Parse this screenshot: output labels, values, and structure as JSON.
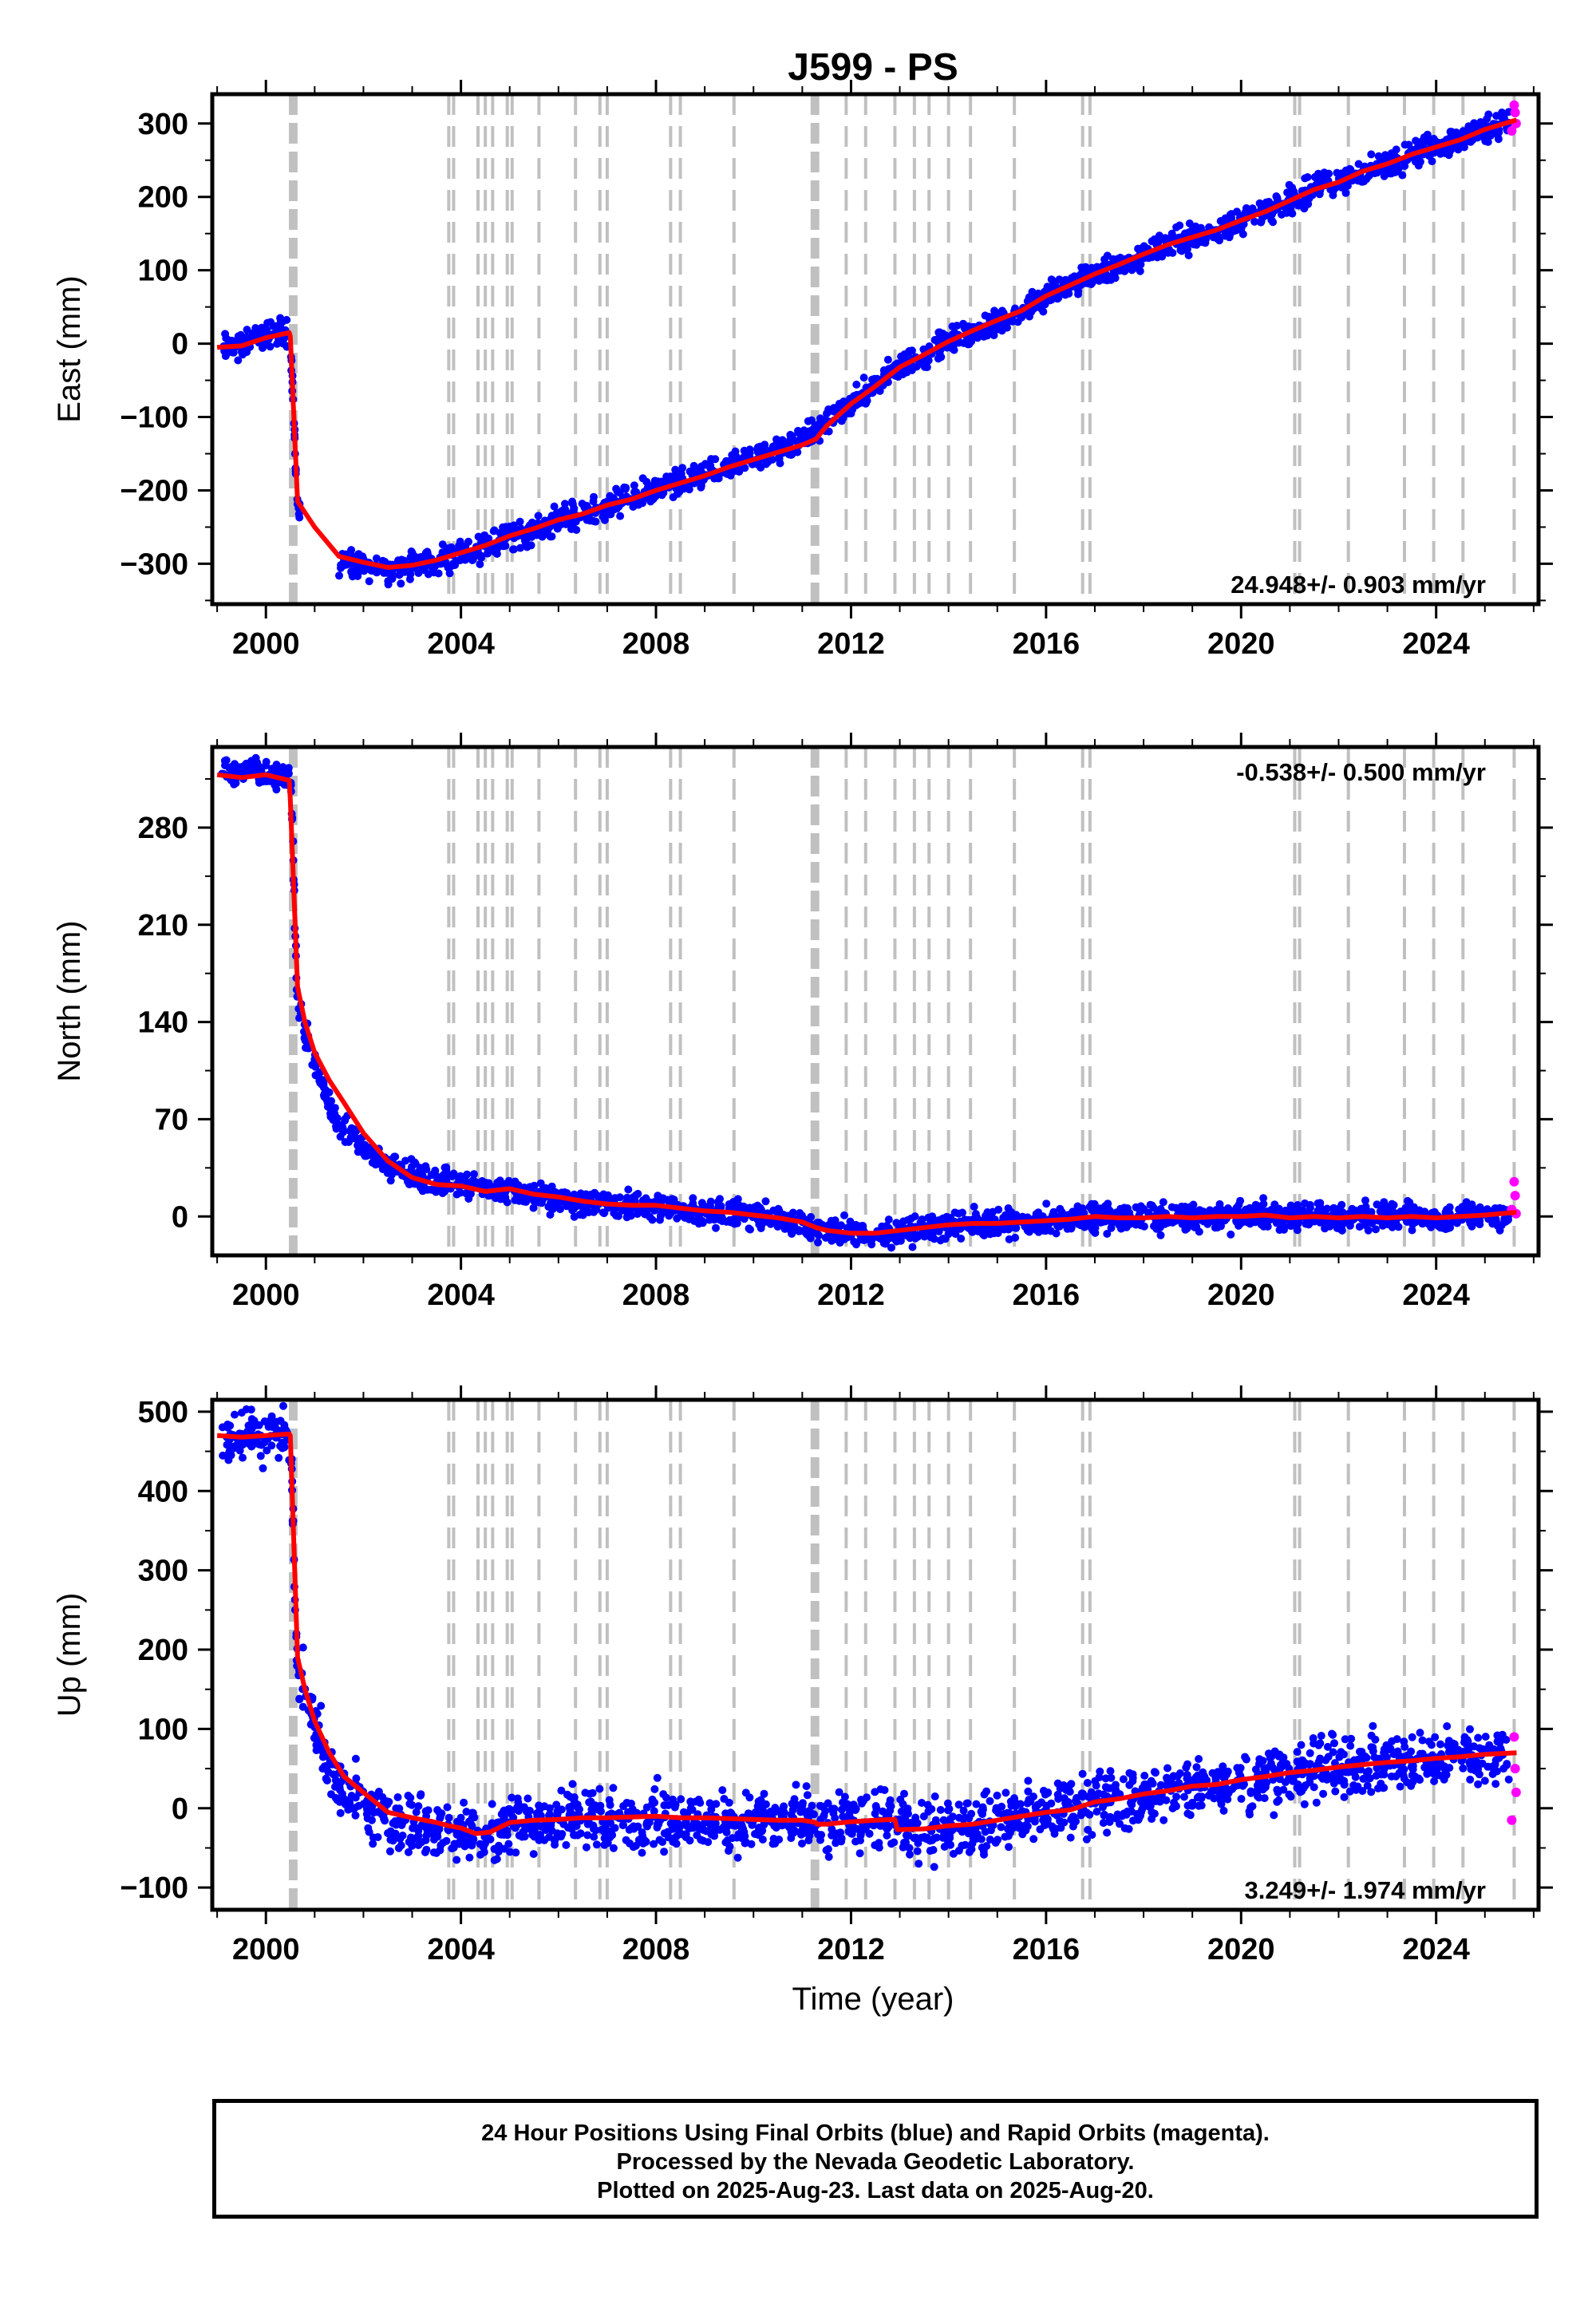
{
  "title": "J599 - PS",
  "xlabel": "Time (year)",
  "colors": {
    "final": "#0000ff",
    "rapid": "#ff00ff",
    "model": "#ff0000",
    "steps": "#c0c0c0"
  },
  "footer": [
    "24 Hour Positions Using Final Orbits (blue) and Rapid Orbits (magenta).",
    "Processed by the Nevada Geodetic Laboratory.",
    "Plotted on 2025-Aug-23. Last data on 2025-Aug-20."
  ],
  "chart_data": [
    {
      "type": "scatter",
      "component": "East",
      "ylabel": "East (mm)",
      "xlim": [
        1998.9,
        2026.1
      ],
      "ylim": [
        -355,
        340
      ],
      "yticks": [
        -300,
        -200,
        -100,
        0,
        100,
        200,
        300
      ],
      "xticks": [
        2000,
        2004,
        2008,
        2012,
        2016,
        2020,
        2024
      ],
      "rate": "24.948+/- 0.903 mm/yr",
      "rate_position": "bottom-right",
      "grid": false,
      "series": [
        {
          "name": "Final Orbits (blue)",
          "type": "scatter",
          "color": "#0000ff",
          "x": [
            1999.1,
            1999.4,
            1999.7,
            2000.0,
            2000.3,
            2000.5,
            2000.55,
            2000.6,
            2000.65,
            2000.7,
            2001.5,
            2002.0,
            2002.5,
            2003.0,
            2003.5,
            2004.0,
            2004.5,
            2005.0,
            2005.5,
            2006.0,
            2006.5,
            2007.0,
            2007.5,
            2008.0,
            2008.5,
            2009.0,
            2009.5,
            2010.0,
            2010.5,
            2011.0,
            2011.5,
            2012.0,
            2012.5,
            2013.0,
            2013.5,
            2014.0,
            2014.5,
            2015.0,
            2015.5,
            2016.0,
            2016.5,
            2017.0,
            2017.5,
            2018.0,
            2018.5,
            2019.0,
            2019.5,
            2020.0,
            2020.5,
            2021.0,
            2021.5,
            2022.0,
            2022.5,
            2023.0,
            2023.5,
            2024.0,
            2024.5,
            2025.0,
            2025.5
          ],
          "y": [
            -5,
            -3,
            0,
            12,
            20,
            10,
            -60,
            -150,
            -220,
            -230,
            -305,
            -300,
            -310,
            -300,
            -298,
            -283,
            -278,
            -262,
            -255,
            -240,
            -233,
            -220,
            -212,
            -200,
            -190,
            -180,
            -168,
            -155,
            -148,
            -130,
            -108,
            -80,
            -60,
            -30,
            -15,
            2,
            18,
            30,
            45,
            65,
            80,
            95,
            105,
            122,
            135,
            145,
            155,
            168,
            180,
            195,
            210,
            220,
            235,
            245,
            258,
            270,
            280,
            292,
            305
          ]
        },
        {
          "name": "Rapid Orbits (magenta)",
          "type": "scatter",
          "color": "#ff00ff",
          "x": [
            2025.55,
            2025.6,
            2025.62,
            2025.64
          ],
          "y": [
            290,
            325,
            315,
            300
          ]
        },
        {
          "name": "Model",
          "type": "line",
          "color": "#ff0000",
          "x": [
            1999.0,
            1999.5,
            2000.0,
            2000.48,
            2000.5,
            2000.65,
            2001.0,
            2001.5,
            2002.0,
            2002.5,
            2003.0,
            2003.5,
            2004.0,
            2004.5,
            2005.0,
            2005.5,
            2006.0,
            2006.5,
            2007.0,
            2007.5,
            2008.0,
            2008.5,
            2009.0,
            2009.5,
            2010.0,
            2010.5,
            2011.0,
            2011.28,
            2011.5,
            2012.0,
            2012.5,
            2013.0,
            2013.5,
            2014.0,
            2014.5,
            2015.0,
            2015.5,
            2016.0,
            2016.5,
            2017.0,
            2017.5,
            2018.0,
            2018.5,
            2019.0,
            2019.5,
            2020.0,
            2020.5,
            2021.0,
            2021.5,
            2022.0,
            2022.5,
            2023.0,
            2023.5,
            2024.0,
            2024.5,
            2025.0,
            2025.65
          ],
          "y": [
            -5,
            -3,
            8,
            15,
            10,
            -215,
            -250,
            -290,
            -298,
            -305,
            -302,
            -295,
            -285,
            -275,
            -262,
            -252,
            -240,
            -232,
            -220,
            -212,
            -200,
            -190,
            -180,
            -168,
            -158,
            -148,
            -138,
            -130,
            -112,
            -82,
            -58,
            -32,
            -15,
            3,
            18,
            32,
            45,
            65,
            80,
            95,
            108,
            122,
            135,
            145,
            155,
            168,
            180,
            195,
            210,
            220,
            235,
            245,
            258,
            268,
            278,
            292,
            305
          ]
        }
      ]
    },
    {
      "type": "scatter",
      "component": "North",
      "ylabel": "North (mm)",
      "xlim": [
        1998.9,
        2026.1
      ],
      "ylim": [
        -28,
        338
      ],
      "yticks": [
        0,
        70,
        140,
        210,
        280
      ],
      "xticks": [
        2000,
        2004,
        2008,
        2012,
        2016,
        2020,
        2024
      ],
      "rate": "-0.538+/- 0.500 mm/yr",
      "rate_position": "top-right",
      "grid": false,
      "series": [
        {
          "name": "Final Orbits (blue)",
          "type": "scatter",
          "color": "#0000ff",
          "x": [
            1999.1,
            1999.4,
            1999.7,
            2000.0,
            2000.3,
            2000.5,
            2000.55,
            2000.6,
            2000.65,
            2001.4,
            2001.7,
            2002.0,
            2002.5,
            2003.0,
            2003.5,
            2004.0,
            2004.5,
            2005.0,
            2005.5,
            2006.0,
            2006.5,
            2007.0,
            2007.5,
            2008.0,
            2008.5,
            2009.0,
            2009.5,
            2010.0,
            2010.5,
            2011.0,
            2011.5,
            2012.0,
            2012.5,
            2013.0,
            2013.5,
            2014.0,
            2014.5,
            2015.0,
            2015.5,
            2016.0,
            2016.5,
            2017.0,
            2017.5,
            2018.0,
            2018.5,
            2019.0,
            2019.5,
            2020.0,
            2020.5,
            2021.0,
            2021.5,
            2022.0,
            2022.5,
            2023.0,
            2023.5,
            2024.0,
            2024.5,
            2025.0,
            2025.5
          ],
          "y": [
            320,
            318,
            322,
            316,
            318,
            315,
            280,
            200,
            150,
            70,
            60,
            48,
            38,
            30,
            26,
            24,
            20,
            18,
            16,
            12,
            10,
            8,
            8,
            6,
            5,
            4,
            2,
            0,
            -2,
            -6,
            -10,
            -12,
            -14,
            -12,
            -8,
            -6,
            -5,
            -6,
            -4,
            -3,
            -2,
            0,
            -2,
            -1,
            0,
            -1,
            0,
            0,
            1,
            -1,
            0,
            -1,
            0,
            -1,
            0,
            -1,
            0,
            1,
            2
          ]
        },
        {
          "name": "Rapid Orbits (magenta)",
          "type": "scatter",
          "color": "#ff00ff",
          "x": [
            2025.55,
            2025.6,
            2025.62,
            2025.64
          ],
          "y": [
            5,
            25,
            15,
            2
          ]
        },
        {
          "name": "Model",
          "type": "line",
          "color": "#ff0000",
          "x": [
            1999.0,
            1999.5,
            2000.0,
            2000.48,
            2000.5,
            2000.65,
            2000.8,
            2001.0,
            2001.3,
            2001.6,
            2002.0,
            2002.5,
            2003.0,
            2003.5,
            2004.0,
            2004.5,
            2005.0,
            2005.5,
            2006.0,
            2006.5,
            2007.0,
            2007.5,
            2008.0,
            2008.5,
            2009.0,
            2009.5,
            2010.0,
            2010.5,
            2011.0,
            2011.28,
            2011.5,
            2012.0,
            2012.5,
            2013.0,
            2013.5,
            2014.0,
            2014.5,
            2015.0,
            2015.5,
            2016.0,
            2016.5,
            2017.0,
            2017.5,
            2018.0,
            2018.5,
            2019.0,
            2019.5,
            2020.0,
            2020.5,
            2021.0,
            2021.5,
            2022.0,
            2022.5,
            2023.0,
            2023.5,
            2024.0,
            2024.5,
            2025.0,
            2025.65
          ],
          "y": [
            318,
            316,
            318,
            314,
            300,
            165,
            140,
            118,
            98,
            82,
            60,
            40,
            28,
            23,
            22,
            18,
            20,
            16,
            14,
            11,
            9,
            8,
            8,
            6,
            4,
            3,
            1,
            -1,
            -4,
            -8,
            -10,
            -12,
            -12,
            -10,
            -8,
            -6,
            -5,
            -5,
            -4,
            -3,
            -2,
            0,
            -1,
            -1,
            0,
            -1,
            0,
            0,
            1,
            -1,
            0,
            -1,
            0,
            -1,
            0,
            -1,
            0,
            1,
            3
          ]
        }
      ]
    },
    {
      "type": "scatter",
      "component": "Up",
      "ylabel": "Up (mm)",
      "xlim": [
        1998.9,
        2026.1
      ],
      "ylim": [
        -128,
        515
      ],
      "yticks": [
        -100,
        0,
        100,
        200,
        300,
        400,
        500
      ],
      "xticks": [
        2000,
        2004,
        2008,
        2012,
        2016,
        2020,
        2024
      ],
      "rate": "3.249+/- 1.974 mm/yr",
      "rate_position": "bottom-right",
      "grid": false,
      "series": [
        {
          "name": "Final Orbits (blue)",
          "type": "scatter",
          "color": "#0000ff",
          "x": [
            1999.1,
            1999.4,
            1999.7,
            2000.0,
            2000.3,
            2000.5,
            2000.55,
            2000.6,
            2000.65,
            2001.4,
            2001.7,
            2002.0,
            2002.5,
            2003.0,
            2003.5,
            2004.0,
            2004.5,
            2005.0,
            2005.5,
            2006.0,
            2006.5,
            2007.0,
            2007.5,
            2008.0,
            2008.5,
            2009.0,
            2009.5,
            2010.0,
            2010.5,
            2011.0,
            2011.5,
            2012.0,
            2012.5,
            2013.0,
            2013.5,
            2014.0,
            2014.5,
            2015.0,
            2015.5,
            2016.0,
            2016.5,
            2017.0,
            2017.5,
            2018.0,
            2018.5,
            2019.0,
            2019.5,
            2020.0,
            2020.5,
            2021.0,
            2021.5,
            2022.0,
            2022.5,
            2023.0,
            2023.5,
            2024.0,
            2024.5,
            2025.0,
            2025.5
          ],
          "y": [
            470,
            468,
            472,
            466,
            470,
            475,
            380,
            250,
            170,
            40,
            20,
            0,
            -15,
            -20,
            -25,
            -30,
            -30,
            -15,
            -20,
            -12,
            -15,
            -12,
            -15,
            -10,
            -15,
            -15,
            -20,
            -15,
            -20,
            -18,
            -22,
            -18,
            -15,
            -25,
            -28,
            -22,
            -20,
            -15,
            -10,
            -5,
            0,
            5,
            10,
            15,
            20,
            25,
            30,
            35,
            40,
            45,
            48,
            52,
            55,
            58,
            60,
            62,
            65,
            68,
            70
          ]
        },
        {
          "name": "Rapid Orbits (magenta)",
          "type": "scatter",
          "color": "#ff00ff",
          "x": [
            2025.55,
            2025.6,
            2025.62,
            2025.64
          ],
          "y": [
            -15,
            90,
            50,
            20
          ]
        },
        {
          "name": "Model",
          "type": "line",
          "color": "#ff0000",
          "x": [
            1999.0,
            1999.5,
            2000.0,
            2000.48,
            2000.5,
            2000.65,
            2000.8,
            2001.0,
            2001.3,
            2001.6,
            2002.0,
            2002.5,
            2003.0,
            2003.5,
            2003.75,
            2004.0,
            2004.3,
            2004.6,
            2005.0,
            2005.5,
            2006.0,
            2006.5,
            2007.0,
            2007.5,
            2008.0,
            2008.5,
            2009.0,
            2009.5,
            2010.0,
            2010.5,
            2011.0,
            2011.28,
            2011.3,
            2011.5,
            2012.0,
            2012.5,
            2012.9,
            2012.95,
            2013.5,
            2014.0,
            2014.5,
            2015.0,
            2015.5,
            2016.0,
            2016.5,
            2017.0,
            2017.5,
            2018.0,
            2018.5,
            2019.0,
            2019.5,
            2020.0,
            2020.5,
            2021.0,
            2021.5,
            2022.0,
            2022.5,
            2023.0,
            2023.5,
            2024.0,
            2024.5,
            2025.0,
            2025.65
          ],
          "y": [
            470,
            468,
            470,
            472,
            470,
            190,
            150,
            110,
            70,
            40,
            20,
            -5,
            -12,
            -18,
            -22,
            -25,
            -32,
            -30,
            -18,
            -15,
            -14,
            -12,
            -12,
            -11,
            -10,
            -12,
            -12,
            -13,
            -14,
            -15,
            -15,
            -18,
            -20,
            -20,
            -17,
            -15,
            -14,
            -27,
            -26,
            -22,
            -20,
            -15,
            -10,
            -5,
            -2,
            8,
            12,
            18,
            22,
            28,
            30,
            36,
            40,
            45,
            48,
            52,
            55,
            58,
            60,
            63,
            65,
            68,
            70
          ]
        }
      ]
    }
  ]
}
